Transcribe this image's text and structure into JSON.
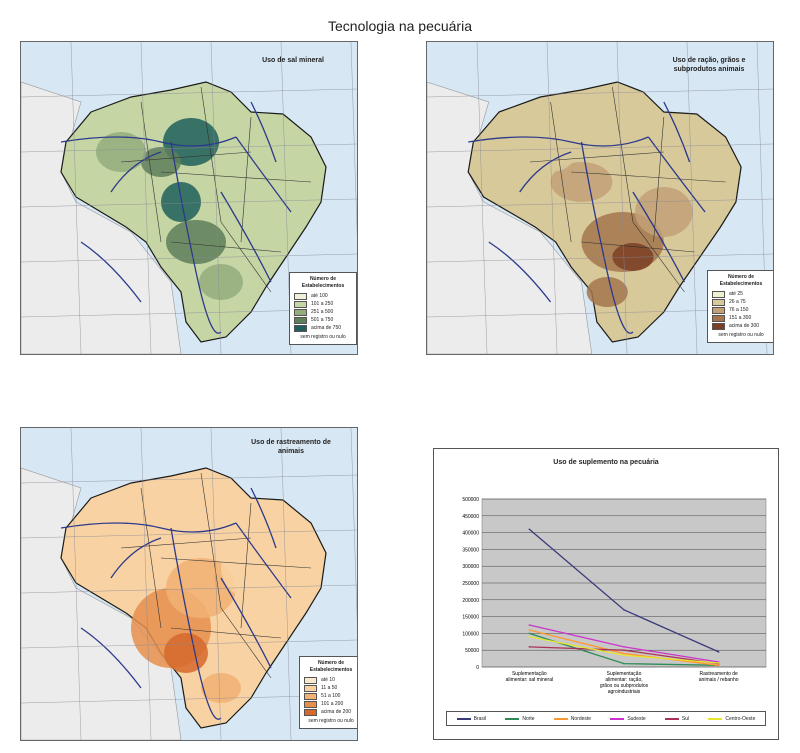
{
  "page_title": "Tecnologia na pecuária",
  "maps": [
    {
      "title": "Uso de sal mineral",
      "legend_title": "Número de Estabelecimentos",
      "legend_items": [
        {
          "label": "até 100",
          "color": "#eef0d8"
        },
        {
          "label": "101 a 250",
          "color": "#c5d5a4"
        },
        {
          "label": "251 a 500",
          "color": "#93ad7e"
        },
        {
          "label": "501 a 750",
          "color": "#5d7f5a"
        },
        {
          "label": "acima de 750",
          "color": "#1e5f5b"
        }
      ],
      "legend_note": "sem registro ou nulo"
    },
    {
      "title": "Uso de ração, grãos e subprodutos animais",
      "legend_title": "Número de Estabelecimentos",
      "legend_items": [
        {
          "label": "até 25",
          "color": "#eef0d0"
        },
        {
          "label": "26 a 75",
          "color": "#d8c99a"
        },
        {
          "label": "76 a 150",
          "color": "#c3a178"
        },
        {
          "label": "151 a 300",
          "color": "#a5764e"
        },
        {
          "label": "acima de 300",
          "color": "#7a3f25"
        }
      ],
      "legend_note": "sem registro ou nulo"
    },
    {
      "title": "Uso de rastreamento de animais",
      "legend_title": "Número de Estabelecimentos",
      "legend_items": [
        {
          "label": "até 10",
          "color": "#fbe9cf"
        },
        {
          "label": "11 a 50",
          "color": "#f8d2a2"
        },
        {
          "label": "51 a 100",
          "color": "#f1b274"
        },
        {
          "label": "101 a 200",
          "color": "#e68f4c"
        },
        {
          "label": "acima de 200",
          "color": "#d5692d"
        }
      ],
      "legend_note": "sem registro ou nulo"
    }
  ],
  "colors": {
    "sea": "#d7e7f3",
    "outside_land": "#ececec",
    "river": "#2c3a8c",
    "border": "#1a1a1a"
  },
  "chart_data": {
    "type": "line",
    "title": "Uso de suplemento na pecuária",
    "categories": [
      "Suplementação alimentar: sal mineral",
      "Suplementação alimentar: ração, grãos ou subprodutos agroindustriais",
      "Rastreamento de animais / rebanho"
    ],
    "ylim": [
      0,
      500000
    ],
    "yticks": [
      "0",
      "50000",
      "100000",
      "150000",
      "200000",
      "250000",
      "300000",
      "350000",
      "400000",
      "450000",
      "500000"
    ],
    "grid": true,
    "legend_position": "bottom",
    "series": [
      {
        "name": "Brasil",
        "color": "#3a3a7a",
        "values": [
          410000,
          170000,
          45000
        ]
      },
      {
        "name": "Norte",
        "color": "#2e8b57",
        "values": [
          100000,
          10000,
          5000
        ]
      },
      {
        "name": "Nordeste",
        "color": "#ff9933",
        "values": [
          110000,
          40000,
          5000
        ]
      },
      {
        "name": "Sudeste",
        "color": "#cc33cc",
        "values": [
          125000,
          60000,
          15000
        ]
      },
      {
        "name": "Sul",
        "color": "#aa3355",
        "values": [
          60000,
          50000,
          10000
        ]
      },
      {
        "name": "Centro-Oeste",
        "color": "#e6e62e",
        "values": [
          90000,
          35000,
          12000
        ]
      }
    ]
  }
}
